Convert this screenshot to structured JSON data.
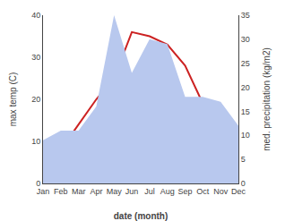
{
  "chart_data": {
    "type": "line",
    "categories": [
      "Jan",
      "Feb",
      "Mar",
      "Apr",
      "May",
      "Jun",
      "Jul",
      "Aug",
      "Sep",
      "Oct",
      "Nov",
      "Dec"
    ],
    "xlabel": "date (month)",
    "ylabel": "max temp (C)",
    "y2label": "med. precipitation (kg/m2)",
    "series": [
      {
        "type": "area",
        "axis": "y2",
        "color": "#b8c8ee",
        "values": [
          9,
          11,
          11,
          16,
          35,
          23,
          30,
          29,
          18,
          18,
          17,
          12
        ]
      },
      {
        "type": "line",
        "color": "#cc2222",
        "values": [
          4,
          8,
          14,
          20,
          25,
          36,
          35,
          33,
          28,
          19,
          12,
          5
        ]
      }
    ],
    "ylim": [
      0,
      40
    ],
    "yticks": [
      0,
      10,
      20,
      30,
      40
    ],
    "y2lim": [
      0,
      35
    ],
    "y2ticks": [
      0,
      5,
      10,
      15,
      20,
      25,
      30,
      35
    ],
    "grid": false
  }
}
